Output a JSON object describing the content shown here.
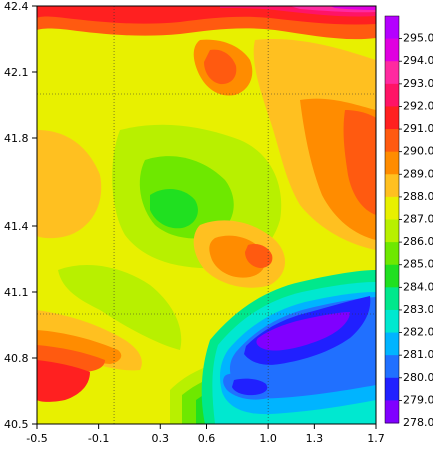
{
  "map": {
    "x_ticks": [
      "-0.5",
      "-0.1",
      "0.3",
      "0.6",
      "1.0",
      "1.3",
      "1.7"
    ],
    "x_values": [
      -0.5,
      -0.1,
      0.3,
      0.6,
      1.0,
      1.3,
      1.7
    ],
    "y_ticks": [
      "42.4",
      "42.1",
      "41.8",
      "41.4",
      "41.1",
      "40.8",
      "40.5"
    ],
    "y_values": [
      42.4,
      42.1,
      41.8,
      41.4,
      41.1,
      40.8,
      40.5
    ],
    "x_range": [
      -0.5,
      1.7
    ],
    "y_range": [
      40.5,
      42.4
    ],
    "grid_lines": {
      "longitudes": [
        0.0,
        1.0
      ],
      "latitudes": [
        41.0,
        42.0
      ],
      "style": "dotted"
    },
    "colorbar": {
      "levels": [
        "295.0",
        "294.0",
        "293.0",
        "292.0",
        "291.0",
        "290.0",
        "289.0",
        "288.0",
        "287.0",
        "286.0",
        "285.0",
        "284.0",
        "283.0",
        "282.0",
        "281.0",
        "280.0",
        "279.0",
        "278.0"
      ],
      "colors": [
        "#b400ff",
        "#e000e0",
        "#ff2aa0",
        "#ff1466",
        "#ff2020",
        "#ff5a10",
        "#ff8c00",
        "#ffc020",
        "#e8f000",
        "#b8f000",
        "#6ee800",
        "#20e020",
        "#00e88c",
        "#00e8d0",
        "#00b4ff",
        "#2070ff",
        "#2020ff",
        "#8000ff"
      ]
    },
    "field_colors": {
      "k295": "#b400ff",
      "k294": "#e000e0",
      "k293": "#ff2aa0",
      "k292": "#ff1466",
      "k291": "#ff2020",
      "k290": "#ff5a10",
      "k289": "#ff8c00",
      "k288": "#ffc020",
      "k287": "#e8f000",
      "k286": "#b8f000",
      "k285": "#6ee800",
      "k284": "#20e020",
      "k283": "#00e88c",
      "k282": "#00e8d0",
      "k281": "#00b4ff",
      "k280": "#2070ff",
      "k279": "#2020ff",
      "k278": "#8000ff"
    }
  }
}
